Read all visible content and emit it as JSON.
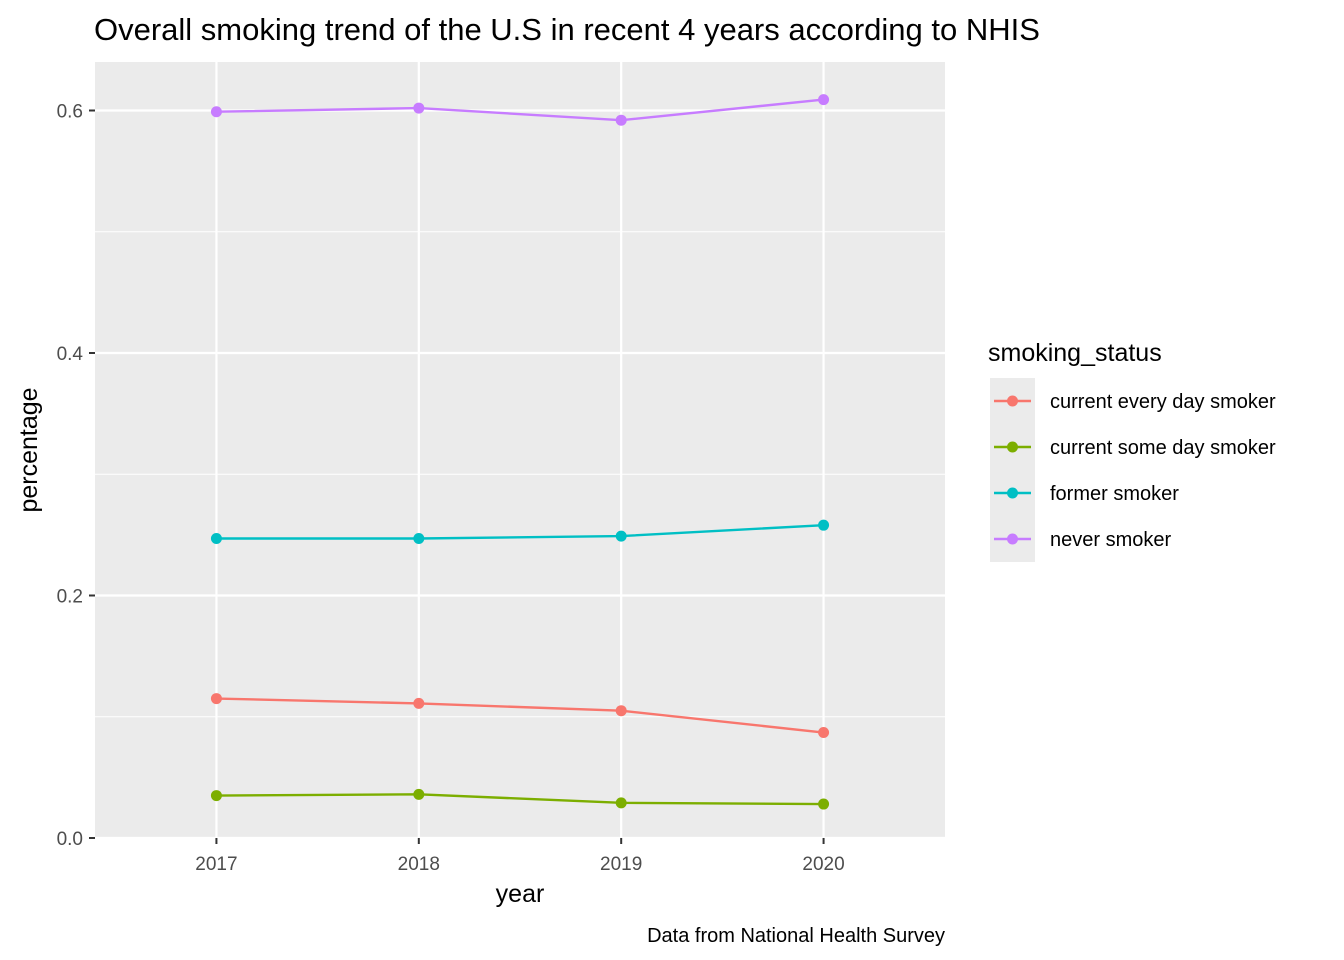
{
  "chart_data": {
    "type": "line",
    "title": "Overall smoking trend of the U.S in recent 4 years according to NHIS",
    "xlabel": "year",
    "ylabel": "percentage",
    "caption": "Data from National Health Survey",
    "x": [
      2017,
      2018,
      2019,
      2020
    ],
    "xlim": [
      2016.4,
      2020.6
    ],
    "ylim": [
      0,
      0.64
    ],
    "x_ticks": [
      "2017",
      "2018",
      "2019",
      "2020"
    ],
    "y_ticks": [
      {
        "value": 0.0,
        "label": "0.0"
      },
      {
        "value": 0.2,
        "label": "0.2"
      },
      {
        "value": 0.4,
        "label": "0.4"
      },
      {
        "value": 0.6,
        "label": "0.6"
      }
    ],
    "y_minor_ticks": [
      0.1,
      0.3,
      0.5
    ],
    "grid": true,
    "legend": {
      "title": "smoking_status",
      "position": "right"
    },
    "series": [
      {
        "name": "current every day smoker",
        "color": "#F8766D",
        "values": [
          0.115,
          0.111,
          0.105,
          0.087
        ]
      },
      {
        "name": "current some day smoker",
        "color": "#7CAE00",
        "values": [
          0.035,
          0.036,
          0.029,
          0.028
        ]
      },
      {
        "name": "former smoker",
        "color": "#00BFC4",
        "values": [
          0.247,
          0.247,
          0.249,
          0.258
        ]
      },
      {
        "name": "never smoker",
        "color": "#C77CFF",
        "values": [
          0.599,
          0.602,
          0.592,
          0.609
        ]
      }
    ]
  }
}
